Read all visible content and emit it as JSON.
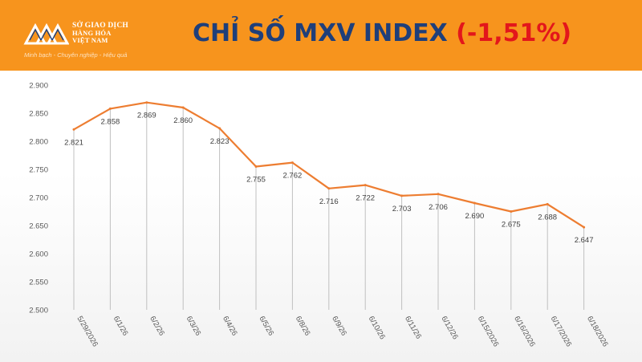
{
  "header": {
    "logo": {
      "name_line1": "SỞ GIAO DỊCH",
      "name_line2": "HÀNG HÓA",
      "name_line3": "VIỆT NAM",
      "tagline": "Minh bạch - Chuyên nghiệp - Hiệu quả"
    },
    "title_main": "CHỈ SỐ MXV INDEX ",
    "title_change": "(-1,51%)"
  },
  "colors": {
    "header_bg": "#f7941d",
    "title_main": "#1f3f7a",
    "title_change": "#e3161b",
    "line": "#ed7d31",
    "droplines": "#c0c0c0"
  },
  "chart_data": {
    "type": "line",
    "title": "",
    "xlabel": "",
    "ylabel": "",
    "categories": [
      "5/29/2026",
      "6/1/26",
      "6/2/26",
      "6/3/26",
      "6/4/26",
      "6/5/26",
      "6/8/26",
      "6/9/26",
      "6/10/26",
      "6/11/26",
      "6/12/26",
      "6/15/2026",
      "6/16/2026",
      "6/17/2026",
      "6/18/2026"
    ],
    "values": [
      2821,
      2858,
      2869,
      2860,
      2823,
      2755,
      2762,
      2716,
      2722,
      2703,
      2706,
      2690,
      2675,
      2688,
      2647
    ],
    "data_labels": [
      "2.821",
      "2.858",
      "2.869",
      "2.860",
      "2.823",
      "2.755",
      "2.762",
      "2.716",
      "2.722",
      "2.703",
      "2.706",
      "2.690",
      "2.675",
      "2.688",
      "2.647"
    ],
    "ylim": [
      2500,
      2900
    ],
    "yticks": [
      2900,
      2850,
      2800,
      2750,
      2700,
      2650,
      2600,
      2550,
      2500
    ],
    "ytick_labels": [
      "2.900",
      "2.850",
      "2.800",
      "2.750",
      "2.700",
      "2.650",
      "2.600",
      "2.550",
      "2.500"
    ],
    "drop_lines": true,
    "grid": false,
    "legend": "none"
  }
}
